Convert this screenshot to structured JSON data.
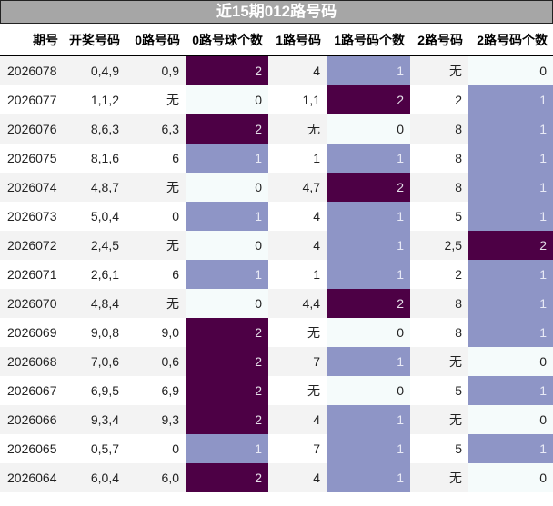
{
  "title": "近15期012路号码",
  "columns": [
    "期号",
    "开奖号码",
    "0路号码",
    "0路号球个数",
    "1路号码",
    "1路号码个数",
    "2路号码",
    "2路号码个数"
  ],
  "colors": {
    "count_2": "#4d0045",
    "count_1": "#8e95c6",
    "count_0": "#f5fbfb",
    "title_bg": "#a6a6a6"
  },
  "rows": [
    [
      "2026078",
      "0,4,9",
      "0,9",
      "2",
      "4",
      "1",
      "无",
      "0"
    ],
    [
      "2026077",
      "1,1,2",
      "无",
      "0",
      "1,1",
      "2",
      "2",
      "1"
    ],
    [
      "2026076",
      "8,6,3",
      "6,3",
      "2",
      "无",
      "0",
      "8",
      "1"
    ],
    [
      "2026075",
      "8,1,6",
      "6",
      "1",
      "1",
      "1",
      "8",
      "1"
    ],
    [
      "2026074",
      "4,8,7",
      "无",
      "0",
      "4,7",
      "2",
      "8",
      "1"
    ],
    [
      "2026073",
      "5,0,4",
      "0",
      "1",
      "4",
      "1",
      "5",
      "1"
    ],
    [
      "2026072",
      "2,4,5",
      "无",
      "0",
      "4",
      "1",
      "2,5",
      "2"
    ],
    [
      "2026071",
      "2,6,1",
      "6",
      "1",
      "1",
      "1",
      "2",
      "1"
    ],
    [
      "2026070",
      "4,8,4",
      "无",
      "0",
      "4,4",
      "2",
      "8",
      "1"
    ],
    [
      "2026069",
      "9,0,8",
      "9,0",
      "2",
      "无",
      "0",
      "8",
      "1"
    ],
    [
      "2026068",
      "7,0,6",
      "0,6",
      "2",
      "7",
      "1",
      "无",
      "0"
    ],
    [
      "2026067",
      "6,9,5",
      "6,9",
      "2",
      "无",
      "0",
      "5",
      "1"
    ],
    [
      "2026066",
      "9,3,4",
      "9,3",
      "2",
      "4",
      "1",
      "无",
      "0"
    ],
    [
      "2026065",
      "0,5,7",
      "0",
      "1",
      "7",
      "1",
      "5",
      "1"
    ],
    [
      "2026064",
      "6,0,4",
      "6,0",
      "2",
      "4",
      "1",
      "无",
      "0"
    ]
  ]
}
